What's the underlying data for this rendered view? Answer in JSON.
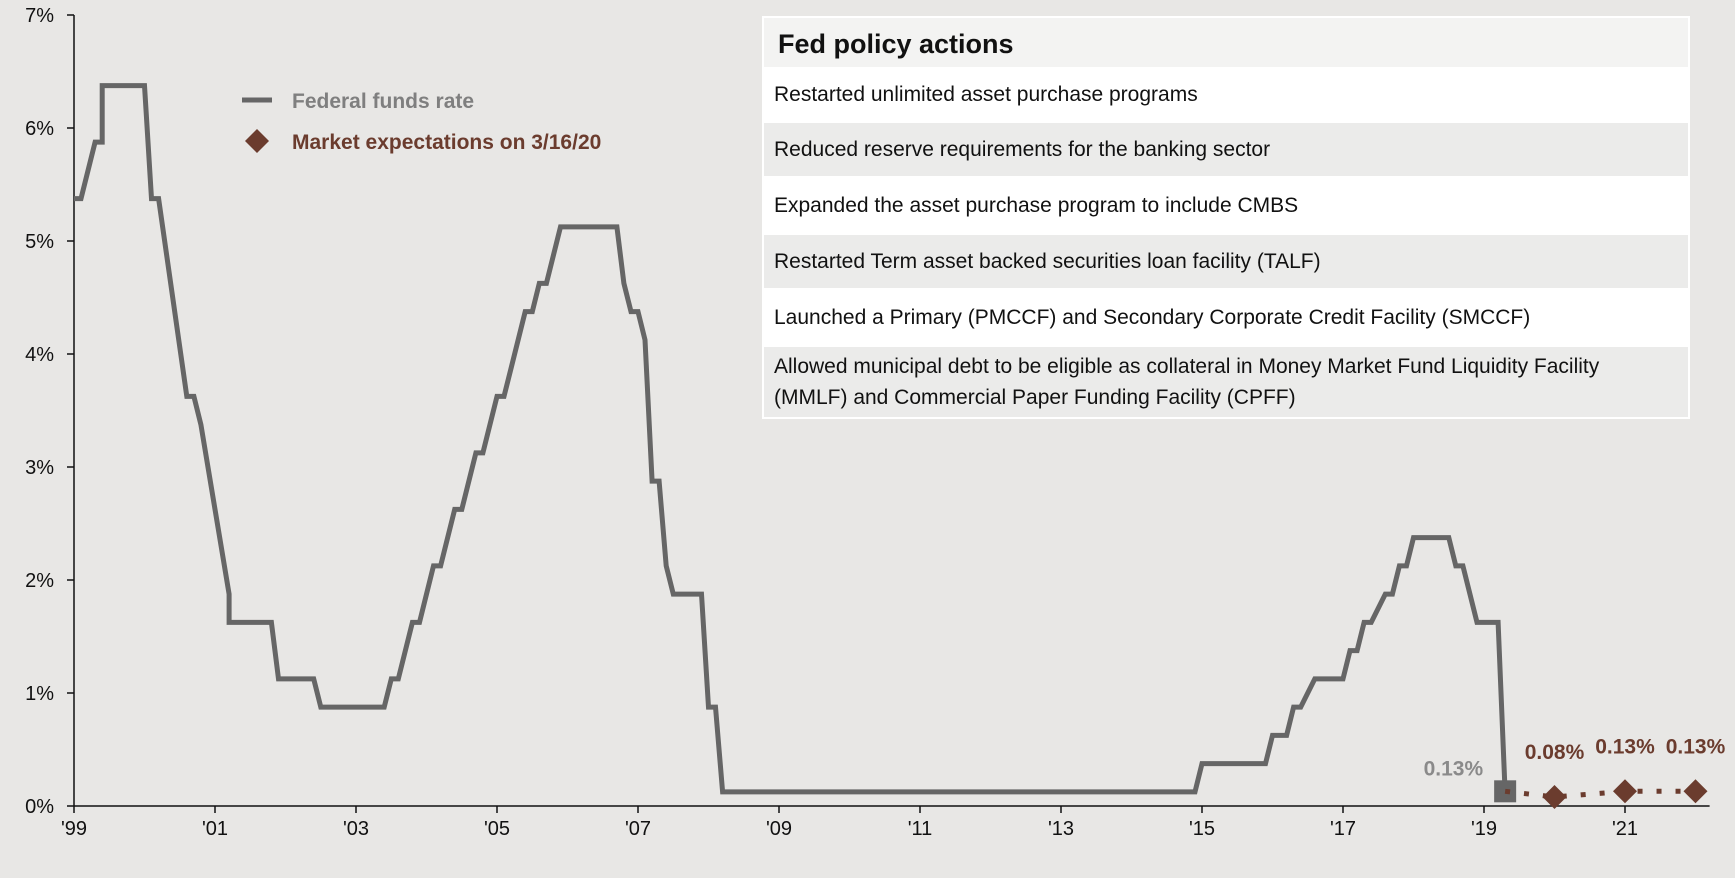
{
  "chart_data": {
    "type": "line",
    "title": "",
    "xlabel": "",
    "ylabel": "",
    "x_ticks": [
      "'99",
      "'01",
      "'03",
      "'05",
      "'07",
      "'09",
      "'11",
      "'13",
      "'15",
      "'17",
      "'19",
      "'21"
    ],
    "y_ticks": [
      "0%",
      "1%",
      "2%",
      "3%",
      "4%",
      "5%",
      "6%",
      "7%"
    ],
    "ylim": [
      0,
      7
    ],
    "xlim": [
      1999.0,
      2022.2
    ],
    "legend_position": "top-left",
    "series": [
      {
        "name": "Federal funds rate",
        "color": "#666666",
        "style": "step",
        "points": [
          [
            1999.0,
            5.375
          ],
          [
            1999.1,
            5.375
          ],
          [
            1999.3,
            5.875
          ],
          [
            1999.4,
            5.875
          ],
          [
            1999.4,
            6.375
          ],
          [
            2000.0,
            6.375
          ],
          [
            2000.1,
            5.375
          ],
          [
            2000.2,
            5.375
          ],
          [
            2000.6,
            3.625
          ],
          [
            2000.7,
            3.625
          ],
          [
            2000.8,
            3.375
          ],
          [
            2001.2,
            1.875
          ],
          [
            2001.2,
            1.625
          ],
          [
            2001.8,
            1.625
          ],
          [
            2001.9,
            1.125
          ],
          [
            2002.4,
            1.125
          ],
          [
            2002.5,
            0.875
          ],
          [
            2003.4,
            0.875
          ],
          [
            2003.5,
            1.125
          ],
          [
            2003.6,
            1.125
          ],
          [
            2003.8,
            1.625
          ],
          [
            2003.9,
            1.625
          ],
          [
            2004.1,
            2.125
          ],
          [
            2004.2,
            2.125
          ],
          [
            2004.4,
            2.625
          ],
          [
            2004.5,
            2.625
          ],
          [
            2004.7,
            3.125
          ],
          [
            2004.8,
            3.125
          ],
          [
            2005.0,
            3.625
          ],
          [
            2005.1,
            3.625
          ],
          [
            2005.2,
            3.875
          ],
          [
            2005.4,
            4.375
          ],
          [
            2005.5,
            4.375
          ],
          [
            2005.6,
            4.625
          ],
          [
            2005.7,
            4.625
          ],
          [
            2005.9,
            5.125
          ],
          [
            2006.7,
            5.125
          ],
          [
            2006.8,
            4.625
          ],
          [
            2006.9,
            4.375
          ],
          [
            2007.0,
            4.375
          ],
          [
            2007.1,
            4.125
          ],
          [
            2007.2,
            2.875
          ],
          [
            2007.3,
            2.875
          ],
          [
            2007.4,
            2.125
          ],
          [
            2007.5,
            1.875
          ],
          [
            2007.9,
            1.875
          ],
          [
            2008.0,
            0.875
          ],
          [
            2008.1,
            0.875
          ],
          [
            2008.2,
            0.125
          ],
          [
            2014.9,
            0.125
          ],
          [
            2015.0,
            0.375
          ],
          [
            2015.9,
            0.375
          ],
          [
            2016.0,
            0.625
          ],
          [
            2016.2,
            0.625
          ],
          [
            2016.3,
            0.875
          ],
          [
            2016.4,
            0.875
          ],
          [
            2016.6,
            1.125
          ],
          [
            2017.0,
            1.125
          ],
          [
            2017.1,
            1.375
          ],
          [
            2017.2,
            1.375
          ],
          [
            2017.3,
            1.625
          ],
          [
            2017.4,
            1.625
          ],
          [
            2017.6,
            1.875
          ],
          [
            2017.7,
            1.875
          ],
          [
            2017.8,
            2.125
          ],
          [
            2017.9,
            2.125
          ],
          [
            2018.0,
            2.375
          ],
          [
            2018.5,
            2.375
          ],
          [
            2018.6,
            2.125
          ],
          [
            2018.7,
            2.125
          ],
          [
            2018.9,
            1.625
          ],
          [
            2019.2,
            1.625
          ],
          [
            2019.3,
            0.125
          ]
        ],
        "endpoint": {
          "x": 2019.3,
          "y": 0.13,
          "label": "0.13%"
        }
      },
      {
        "name": "Market expectations on 3/16/20",
        "color": "#6b3c2e",
        "style": "dotted",
        "points": [
          {
            "x": 2020.0,
            "y": 0.08,
            "label": "0.08%"
          },
          {
            "x": 2021.0,
            "y": 0.13,
            "label": "0.13%"
          },
          {
            "x": 2022.0,
            "y": 0.13,
            "label": "0.13%"
          }
        ]
      }
    ]
  },
  "policy_actions": {
    "title": "Fed policy actions",
    "items": [
      "Restarted unlimited asset purchase programs",
      "Reduced reserve requirements for the banking sector",
      "Expanded the asset purchase program to include CMBS",
      "Restarted Term asset backed securities loan facility (TALF)",
      "Launched a Primary (PMCCF) and Secondary Corporate Credit Facility (SMCCF)",
      "Allowed municipal debt to be eligible as collateral in Money Market Fund Liquidity Facility (MMLF) and Commercial Paper Funding Facility (CPFF)"
    ]
  }
}
